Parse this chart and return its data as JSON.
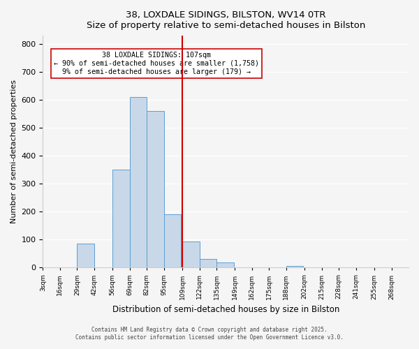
{
  "title": "38, LOXDALE SIDINGS, BILSTON, WV14 0TR",
  "subtitle": "Size of property relative to semi-detached houses in Bilston",
  "xlabel": "Distribution of semi-detached houses by size in Bilston",
  "ylabel": "Number of semi-detached properties",
  "bin_labels": [
    "3sqm",
    "16sqm",
    "29sqm",
    "42sqm",
    "56sqm",
    "69sqm",
    "82sqm",
    "95sqm",
    "109sqm",
    "122sqm",
    "135sqm",
    "149sqm",
    "162sqm",
    "175sqm",
    "188sqm",
    "202sqm",
    "215sqm",
    "228sqm",
    "241sqm",
    "255sqm",
    "268sqm"
  ],
  "bin_edges": [
    3,
    16,
    29,
    42,
    56,
    69,
    82,
    95,
    109,
    122,
    135,
    149,
    162,
    175,
    188,
    202,
    215,
    228,
    241,
    255,
    268
  ],
  "bar_heights": [
    0,
    0,
    85,
    0,
    350,
    610,
    560,
    190,
    93,
    30,
    17,
    0,
    0,
    0,
    5,
    0,
    0,
    0,
    0,
    0
  ],
  "bar_color": "#c8d8e8",
  "bar_edge_color": "#5a9fd4",
  "property_size": 107,
  "vline_x": 109,
  "vline_color": "#cc0000",
  "annotation_title": "38 LOXDALE SIDINGS: 107sqm",
  "annotation_line1": "← 90% of semi-detached houses are smaller (1,758)",
  "annotation_line2": "9% of semi-detached houses are larger (179) →",
  "annotation_box_color": "#ffffff",
  "annotation_box_edge": "#cc0000",
  "ylim": [
    0,
    830
  ],
  "footer1": "Contains HM Land Registry data © Crown copyright and database right 2025.",
  "footer2": "Contains public sector information licensed under the Open Government Licence v3.0.",
  "bg_color": "#f5f5f5"
}
